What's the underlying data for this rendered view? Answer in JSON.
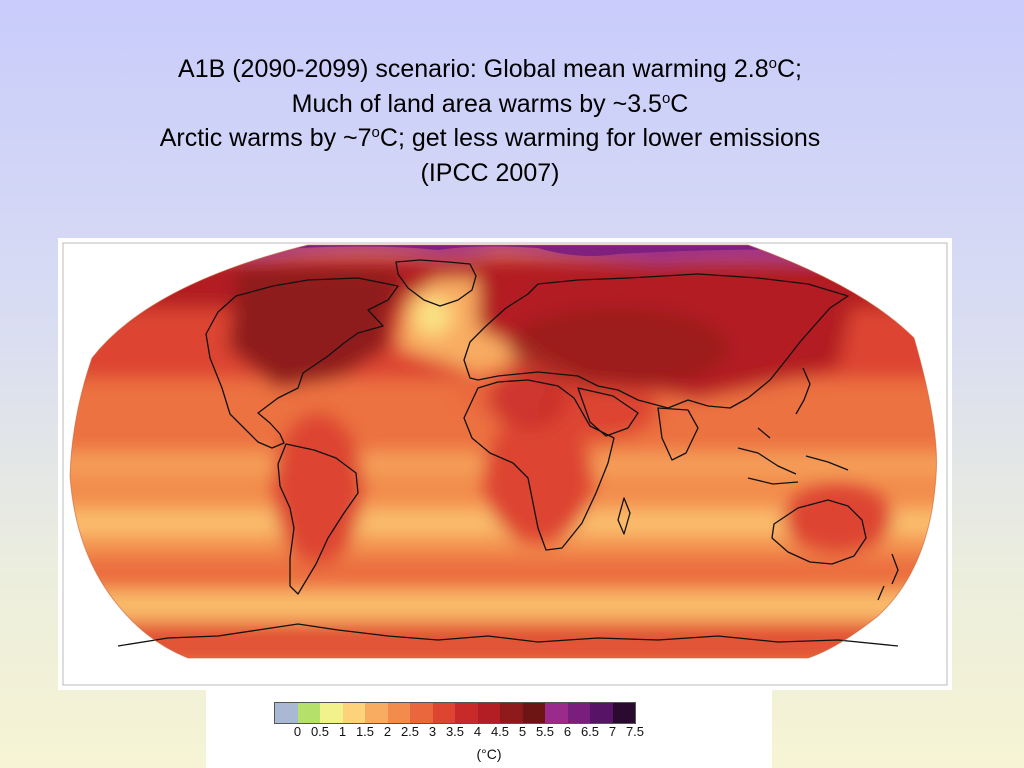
{
  "title": {
    "line1_pre": "A1B (2090-2099) scenario: Global mean warming 2.8",
    "line1_sup": "o",
    "line1_post": "C;",
    "line2_pre": "Much of land area warms by ~3.5",
    "line2_sup": "o",
    "line2_post": "C",
    "line3_pre": "Arctic warms by ~7",
    "line3_sup": "o",
    "line3_post": "C; get less warming for lower emissions",
    "line4": "(IPCC 2007)"
  },
  "map": {
    "projection": "robinson",
    "variable": "surface temperature change"
  },
  "legend": {
    "unit": "(°C)",
    "ticks": [
      "0",
      "0.5",
      "1",
      "1.5",
      "2",
      "2.5",
      "3",
      "3.5",
      "4",
      "4.5",
      "5",
      "5.5",
      "6",
      "6.5",
      "7",
      "7.5"
    ],
    "colors": [
      "#a9b9d3",
      "#b5e06a",
      "#f2f28c",
      "#fdd27a",
      "#f8ac62",
      "#f28c4c",
      "#ea663c",
      "#dd4531",
      "#c82a2a",
      "#b21e24",
      "#8f1a1c",
      "#6c1514",
      "#9a2a8c",
      "#7a1e7e",
      "#571466",
      "#2a0a2e"
    ]
  }
}
